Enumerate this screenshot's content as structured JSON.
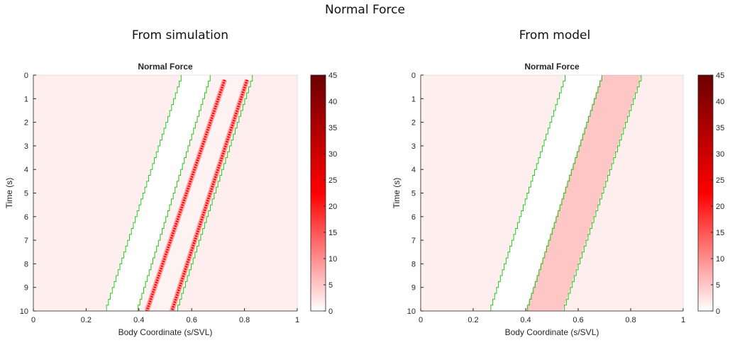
{
  "figure": {
    "title": "Normal Force",
    "panels": [
      {
        "title": "From simulation"
      },
      {
        "title": "From model"
      }
    ]
  },
  "chart_data": [
    {
      "type": "heatmap",
      "title": "Normal Force",
      "xlabel": "Body Coordinate (s/SVL)",
      "ylabel": "Time (s)",
      "xlim": [
        0,
        1
      ],
      "ylim": [
        0,
        10
      ],
      "y_reversed": true,
      "xticks": [
        "0",
        "0.2",
        "0.4",
        "0.6",
        "0.8",
        "1"
      ],
      "yticks": [
        "0",
        "1",
        "2",
        "3",
        "4",
        "5",
        "6",
        "7",
        "8",
        "9",
        "10"
      ],
      "colorbar": {
        "range": [
          0,
          45
        ],
        "ticks": [
          "0",
          "5",
          "10",
          "15",
          "20",
          "25",
          "30",
          "35",
          "40",
          "45"
        ],
        "colormap": [
          "#ffffff",
          "#ff0000",
          "#6b0000"
        ]
      },
      "background_value": 1.5,
      "contact_boundaries": [
        {
          "at_time_0": 0.56,
          "at_time_10": 0.27
        },
        {
          "at_time_0": 0.67,
          "at_time_10": 0.39
        },
        {
          "at_time_0": 0.83,
          "at_time_10": 0.54
        }
      ],
      "peak_ridges": [
        {
          "at_time_0": 0.725,
          "at_time_10": 0.43,
          "value": 22
        },
        {
          "at_time_0": 0.81,
          "at_time_10": 0.525,
          "value": 22
        }
      ]
    },
    {
      "type": "heatmap",
      "title": "Normal Force",
      "xlabel": "Body Coordinate (s/SVL)",
      "ylabel": "Time (s)",
      "xlim": [
        0,
        1
      ],
      "ylim": [
        0,
        10
      ],
      "y_reversed": true,
      "xticks": [
        "0",
        "0.2",
        "0.4",
        "0.6",
        "0.8",
        "1"
      ],
      "yticks": [
        "0",
        "1",
        "2",
        "3",
        "4",
        "5",
        "6",
        "7",
        "8",
        "9",
        "10"
      ],
      "colorbar": {
        "range": [
          0,
          45
        ],
        "ticks": [
          "0",
          "5",
          "10",
          "15",
          "20",
          "25",
          "30",
          "35",
          "40",
          "45"
        ],
        "colormap": [
          "#ffffff",
          "#ff0000",
          "#6b0000"
        ]
      },
      "background_value": 1.5,
      "band": {
        "left_at_time_0": 0.69,
        "left_at_time_10": 0.4,
        "right_at_time_0": 0.84,
        "right_at_time_10": 0.54,
        "value": 5
      },
      "contact_boundaries": [
        {
          "at_time_0": 0.55,
          "at_time_10": 0.26
        },
        {
          "at_time_0": 0.69,
          "at_time_10": 0.4
        },
        {
          "at_time_0": 0.84,
          "at_time_10": 0.54
        }
      ]
    }
  ]
}
